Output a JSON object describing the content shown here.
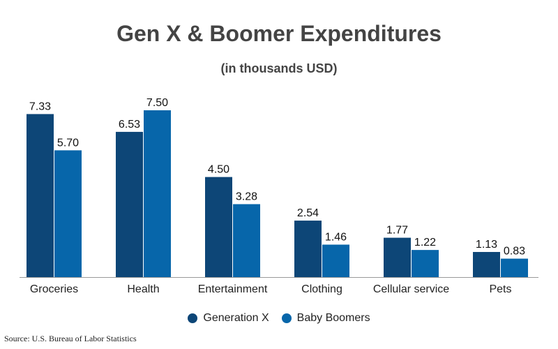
{
  "chart_data": {
    "type": "bar",
    "title": "Gen X & Boomer Expenditures",
    "subtitle": "(in thousands USD)",
    "categories": [
      "Groceries",
      "Health",
      "Entertainment",
      "Clothing",
      "Cellular service",
      "Pets"
    ],
    "series": [
      {
        "name": "Generation X",
        "color": "#0d4677",
        "values": [
          7.33,
          6.53,
          4.5,
          2.54,
          1.77,
          1.13
        ],
        "labels": [
          "7.33",
          "6.53",
          "4.50",
          "2.54",
          "1.77",
          "1.13"
        ]
      },
      {
        "name": "Baby Boomers",
        "color": "#0766aa",
        "values": [
          5.7,
          7.5,
          3.28,
          1.46,
          1.22,
          0.83
        ],
        "labels": [
          "5.70",
          "7.50",
          "3.28",
          "1.46",
          "1.22",
          "0.83"
        ]
      }
    ],
    "ylim": [
      0,
      7.5
    ],
    "legend_position": "bottom-center",
    "grid": false,
    "source": "Source: U.S. Bureau of Labor Statistics"
  }
}
